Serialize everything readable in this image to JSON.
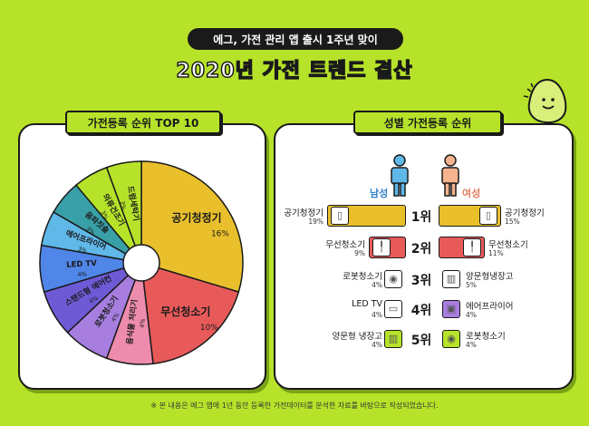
{
  "header": {
    "subtitle": "에그, 가전 관리 앱 출시 1주년 맞이",
    "title": "2020년 가전 트렌드 결산"
  },
  "left_panel": {
    "title": "가전등록 순위 TOP 10"
  },
  "right_panel": {
    "title": "성별 가전등록 순위",
    "male_label": "남성",
    "female_label": "여성"
  },
  "footnote": "※ 본 내용은 에그 앱에 1년 동안 등록한 가전데이터를 분석한 자료를 바탕으로 작성되었습니다.",
  "colors": {
    "background": "#b6e32a",
    "yellow": "#e9c02c",
    "red": "#e85a5a",
    "pink": "#ee8cae",
    "purple": "#a77ee0",
    "violet": "#6f5ad6",
    "blue": "#4f86e8",
    "skyblue": "#5fb8e8",
    "teal": "#3aa0a8",
    "lime": "#b6e32a",
    "male": "#5fb8e8",
    "female": "#f5b48f"
  },
  "chart_data": [
    {
      "type": "pie",
      "title": "가전등록 순위 TOP 10",
      "categories": [
        "공기청정기",
        "무선청소기",
        "음식물 처리기",
        "로봇청소기",
        "스탠드형 에어컨",
        "LED TV",
        "에어프라이어",
        "음파칫솔",
        "의류건조기",
        "드럼세탁기"
      ],
      "values": [
        16,
        10,
        4,
        4,
        4,
        4,
        3,
        3,
        3,
        3
      ],
      "labels": [
        "16%",
        "10%",
        "4%",
        "4%",
        "4%",
        "4%",
        "3%",
        "3%",
        "3%",
        "3%"
      ]
    },
    {
      "type": "bar",
      "title": "성별 가전등록 순위",
      "ranks": [
        "1위",
        "2위",
        "3위",
        "4위",
        "5위"
      ],
      "series": [
        {
          "name": "남성",
          "items": [
            "공기청정기",
            "무선청소기",
            "로봇청소기",
            "LED TV",
            "양문형 냉장고"
          ],
          "values": [
            19,
            9,
            4,
            4,
            4
          ],
          "labels": [
            "19%",
            "9%",
            "4%",
            "4%",
            "4%"
          ]
        },
        {
          "name": "여성",
          "items": [
            "공기청정기",
            "무선청소기",
            "양문형냉장고",
            "에어프라이어",
            "로봇청소기"
          ],
          "values": [
            15,
            11,
            5,
            4,
            4
          ],
          "labels": [
            "15%",
            "11%",
            "5%",
            "4%",
            "4%"
          ]
        }
      ]
    }
  ]
}
